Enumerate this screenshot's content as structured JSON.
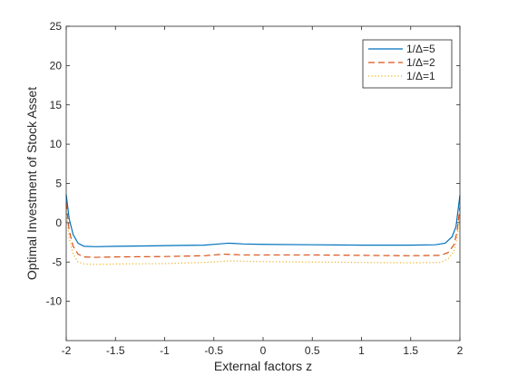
{
  "chart_data": {
    "type": "line",
    "xlabel": "External factors z",
    "ylabel": "Optimal Investment of Stock Asset",
    "xlim": [
      -2,
      2
    ],
    "ylim": [
      -15,
      25
    ],
    "xticks": [
      -2,
      -1.5,
      -1,
      -0.5,
      0,
      0.5,
      1,
      1.5,
      2
    ],
    "xtick_labels": [
      "-2",
      "-1.5",
      "-1",
      "-0.5",
      "0",
      "0.5",
      "1",
      "1.5",
      "2"
    ],
    "yticks": [
      -10,
      -5,
      0,
      5,
      10,
      15,
      20,
      25
    ],
    "ytick_labels": [
      "-10",
      "-5",
      "0",
      "5",
      "10",
      "15",
      "20",
      "25"
    ],
    "grid": false,
    "legend_position": "top-right",
    "series": [
      {
        "name": "1/Δ=5",
        "color": "#0072BD",
        "dash": "solid",
        "points": [
          [
            -2.0,
            3.6
          ],
          [
            -1.97,
            0.5
          ],
          [
            -1.93,
            -1.5
          ],
          [
            -1.88,
            -2.6
          ],
          [
            -1.82,
            -3.0
          ],
          [
            -1.7,
            -3.05
          ],
          [
            -1.5,
            -3.0
          ],
          [
            -1.2,
            -2.95
          ],
          [
            -0.9,
            -2.9
          ],
          [
            -0.6,
            -2.85
          ],
          [
            -0.45,
            -2.7
          ],
          [
            -0.35,
            -2.6
          ],
          [
            -0.2,
            -2.7
          ],
          [
            0.0,
            -2.75
          ],
          [
            0.5,
            -2.8
          ],
          [
            1.0,
            -2.85
          ],
          [
            1.5,
            -2.85
          ],
          [
            1.75,
            -2.8
          ],
          [
            1.85,
            -2.6
          ],
          [
            1.92,
            -1.8
          ],
          [
            1.96,
            -0.5
          ],
          [
            2.0,
            3.5
          ]
        ]
      },
      {
        "name": "1/Δ=2",
        "color": "#D95319",
        "dash": "dashed",
        "points": [
          [
            -2.0,
            2.5
          ],
          [
            -1.97,
            -1.0
          ],
          [
            -1.93,
            -3.0
          ],
          [
            -1.88,
            -4.0
          ],
          [
            -1.82,
            -4.35
          ],
          [
            -1.7,
            -4.4
          ],
          [
            -1.5,
            -4.35
          ],
          [
            -1.0,
            -4.3
          ],
          [
            -0.6,
            -4.2
          ],
          [
            -0.4,
            -4.0
          ],
          [
            -0.2,
            -4.1
          ],
          [
            0.0,
            -4.1
          ],
          [
            0.5,
            -4.1
          ],
          [
            1.0,
            -4.15
          ],
          [
            1.5,
            -4.2
          ],
          [
            1.8,
            -4.15
          ],
          [
            1.88,
            -3.8
          ],
          [
            1.94,
            -2.8
          ],
          [
            1.97,
            -1.2
          ],
          [
            2.0,
            2.0
          ]
        ]
      },
      {
        "name": "1/Δ=1",
        "color": "#EDB120",
        "dash": "dotted",
        "points": [
          [
            -2.0,
            1.5
          ],
          [
            -1.97,
            -2.0
          ],
          [
            -1.93,
            -4.0
          ],
          [
            -1.88,
            -5.0
          ],
          [
            -1.82,
            -5.25
          ],
          [
            -1.7,
            -5.3
          ],
          [
            -1.5,
            -5.25
          ],
          [
            -1.0,
            -5.2
          ],
          [
            -0.5,
            -5.0
          ],
          [
            -0.35,
            -4.85
          ],
          [
            0.0,
            -4.95
          ],
          [
            0.5,
            -5.0
          ],
          [
            1.0,
            -5.05
          ],
          [
            1.5,
            -5.1
          ],
          [
            1.8,
            -5.05
          ],
          [
            1.88,
            -4.6
          ],
          [
            1.94,
            -3.6
          ],
          [
            1.97,
            -2.0
          ],
          [
            2.0,
            1.0
          ]
        ]
      }
    ]
  }
}
